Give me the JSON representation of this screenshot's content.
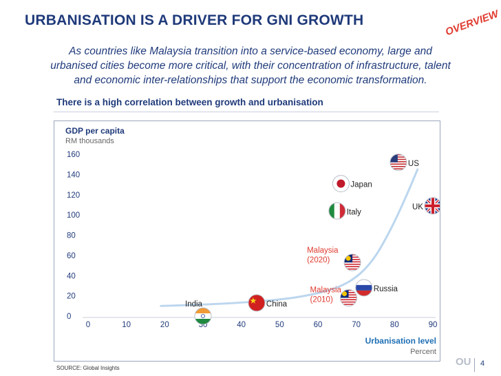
{
  "header": {
    "title": "URBANISATION IS A DRIVER FOR GNI GROWTH",
    "badge": "OVERVIEW",
    "subtitle_lines": [
      "As countries like Malaysia transition into a service-based economy, large and",
      "urbanised cities become more critical, with their concentration of infrastructure, talent",
      "and economic inter-relationships that support the economic transformation."
    ]
  },
  "chart_heading": "There is a high correlation between growth and urbanisation",
  "chart_data": {
    "type": "scatter",
    "ylabel": "GDP per capita",
    "ylabel_unit": "RM thousands",
    "xlabel": "Urbanisation level",
    "xlabel_unit": "Percent",
    "xlim": [
      0,
      90
    ],
    "ylim": [
      0,
      160
    ],
    "x_ticks": [
      0,
      10,
      20,
      30,
      40,
      50,
      60,
      70,
      80,
      90
    ],
    "y_ticks": [
      0,
      20,
      40,
      60,
      80,
      100,
      120,
      140,
      160
    ],
    "grid": false,
    "points": [
      {
        "label": "India",
        "x": 30,
        "y": 0,
        "flag": "india-flag"
      },
      {
        "label": "China",
        "x": 44,
        "y": 13,
        "flag": "china-flag"
      },
      {
        "label": "Malaysia (2010)",
        "x": 68,
        "y": 18,
        "flag": "malaysia-flag",
        "highlight": true
      },
      {
        "label": "Russia",
        "x": 72,
        "y": 28,
        "flag": "russia-flag"
      },
      {
        "label": "Malaysia (2020)",
        "x": 69,
        "y": 53,
        "flag": "malaysia-flag",
        "highlight": true
      },
      {
        "label": "Italy",
        "x": 65,
        "y": 104,
        "flag": "italy-flag"
      },
      {
        "label": "Japan",
        "x": 66,
        "y": 131,
        "flag": "japan-flag"
      },
      {
        "label": "UK",
        "x": 90,
        "y": 109,
        "flag": "uk-flag"
      },
      {
        "label": "US",
        "x": 81,
        "y": 152,
        "flag": "us-flag"
      }
    ],
    "trend_curve": [
      [
        19,
        10
      ],
      [
        35,
        12
      ],
      [
        50,
        16
      ],
      [
        60,
        22
      ],
      [
        68,
        32
      ],
      [
        74,
        52
      ],
      [
        79,
        85
      ],
      [
        83,
        118
      ],
      [
        86,
        145
      ]
    ],
    "colors": {
      "axis_text": "#1f3a7a",
      "highlight_label": "#e03c31",
      "trend": "#bcd6ee"
    }
  },
  "source": "SOURCE:  Global Insights",
  "footer": {
    "logo": "OU",
    "page_number": "4"
  }
}
